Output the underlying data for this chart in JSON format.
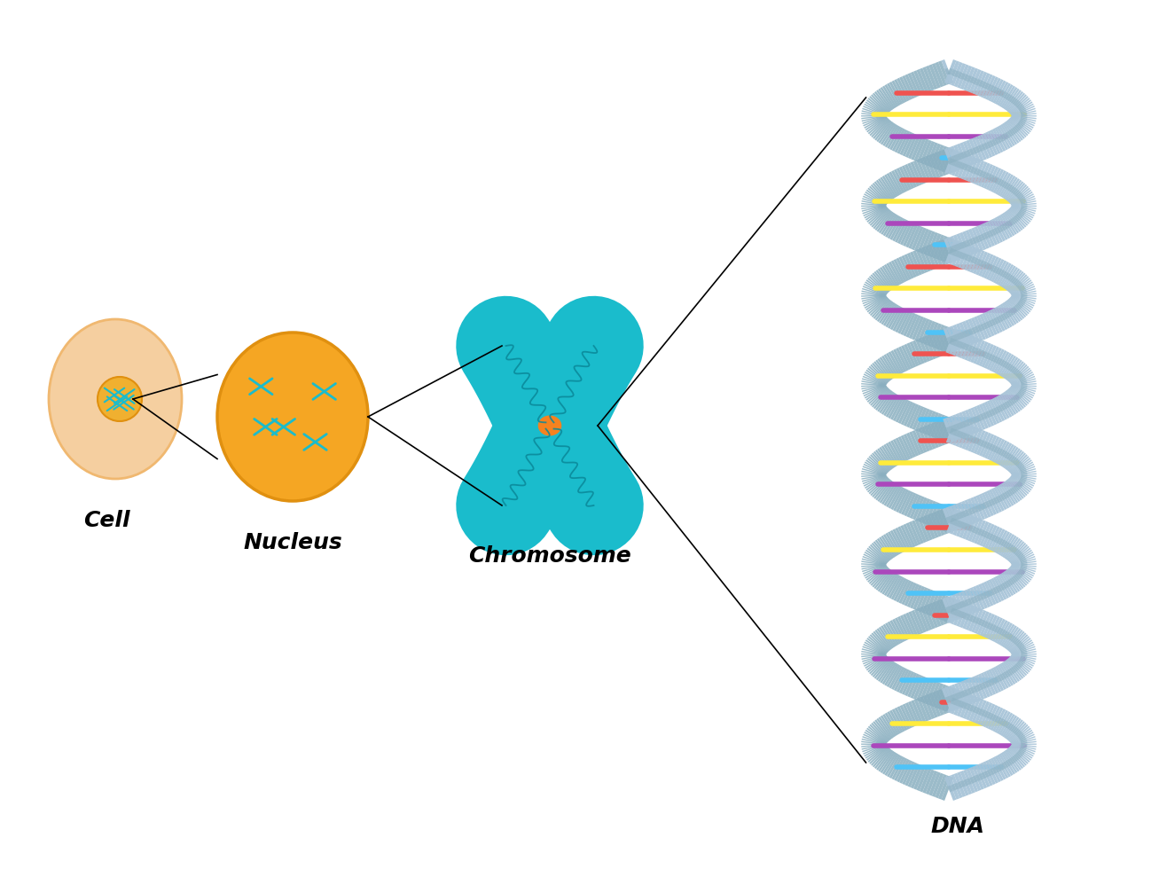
{
  "bg_color": "#ffffff",
  "cell_color": "#f5cfa0",
  "cell_outline": "#f0b870",
  "nucleus_outer_color": "#f5a623",
  "nucleus_outer_outline": "#e09010",
  "nucleus_inner_color": "#f0b030",
  "chromosome_color": "#1abccc",
  "chromosome_dark": "#0faabb",
  "centromere_color": "#f5821f",
  "dna_strand_color": "#a8c4d8",
  "dna_strand_dark": "#8aafc0",
  "dna_bar_colors": [
    "#4fc3f7",
    "#ef5350",
    "#ffeb3b",
    "#ab47bc",
    "#4fc3f7",
    "#ef5350",
    "#ffeb3b",
    "#ab47bc"
  ],
  "label_cell": "Cell",
  "label_nucleus": "Nucleus",
  "label_chromosome": "Chromosome",
  "label_dna": "DNA",
  "label_fontsize": 18,
  "label_style": "italic",
  "label_weight": "bold"
}
